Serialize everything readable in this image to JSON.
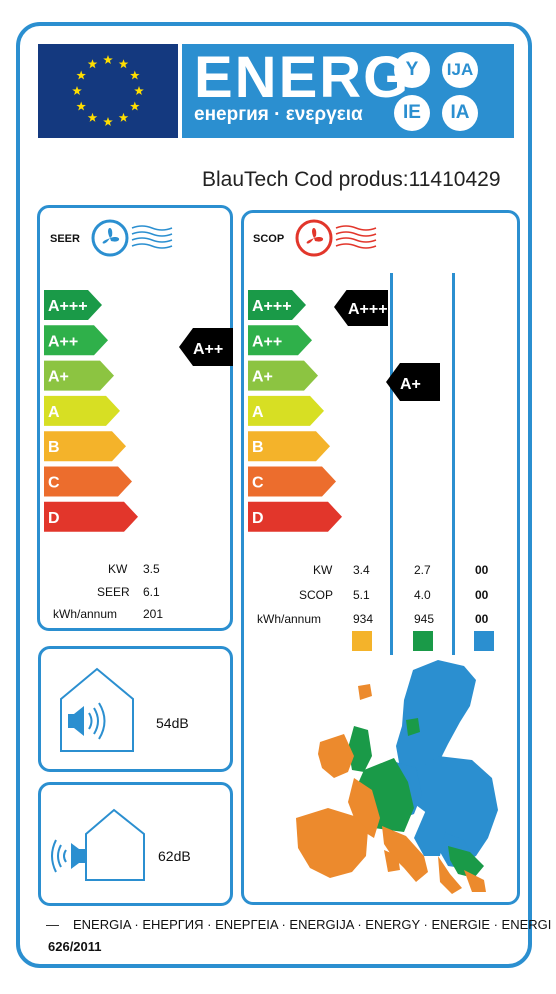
{
  "header": {
    "title": "ENERG",
    "subtitle": "енергия · ενεργεια",
    "languages": [
      "Y",
      "IJA",
      "IE",
      "IA"
    ]
  },
  "brand": {
    "text": "BlauTech Cod produs:11410429"
  },
  "seer_panel": {
    "label": "SEER",
    "classes": [
      "A+++",
      "A++",
      "A+",
      "A",
      "B",
      "C",
      "D"
    ],
    "colors": [
      "#1a9a48",
      "#2fb04a",
      "#8cc441",
      "#d7df23",
      "#f4b32a",
      "#ec6d2d",
      "#e2362b"
    ],
    "rating": "A++",
    "specs": [
      {
        "label": "KW",
        "value": "3.5"
      },
      {
        "label": "SEER",
        "value": "6.1"
      },
      {
        "label": "kWh/annum",
        "value": "201"
      }
    ]
  },
  "scop_panel": {
    "label": "SCOP",
    "classes": [
      "A+++",
      "A++",
      "A+",
      "A",
      "B",
      "C",
      "D"
    ],
    "ratings": [
      "A+++",
      "A+"
    ],
    "specs": [
      {
        "label": "KW",
        "values": [
          "3.4",
          "2.7",
          "00"
        ]
      },
      {
        "label": "SCOP",
        "values": [
          "5.1",
          "4.0",
          "00"
        ]
      },
      {
        "label": "kWh/annum",
        "values": [
          "934",
          "945",
          "00"
        ]
      }
    ],
    "zone_colors": [
      "#f4b32a",
      "#1a9a48",
      "#2b8fd0"
    ]
  },
  "noise": {
    "indoor": "54dB",
    "outdoor": "62dB"
  },
  "footer": {
    "languages": "ENERGIA · ЕНЕРГИЯ · ΕΝΕΡΓΕΙΑ · ENERGIJA · ENERGY · ENERGIE · ENERGI",
    "regulation": "626/2011"
  }
}
